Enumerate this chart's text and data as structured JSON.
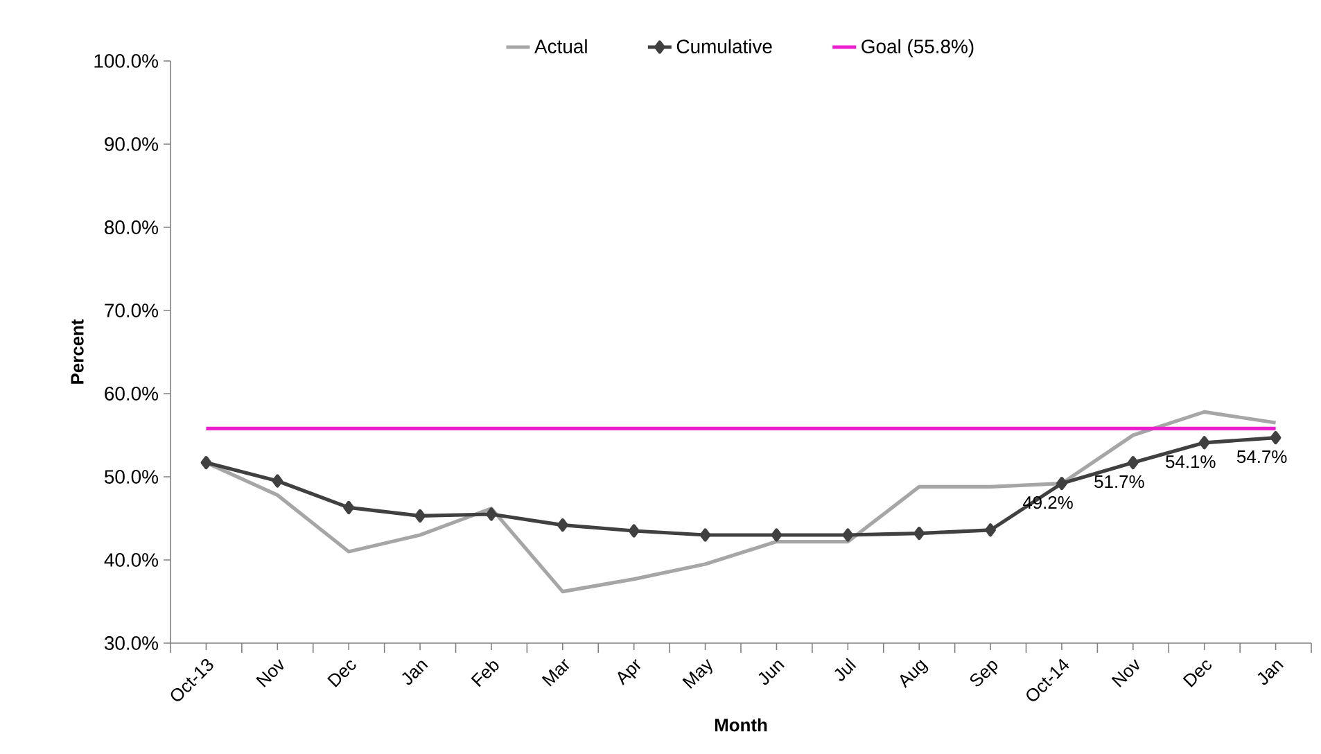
{
  "chart_data": {
    "type": "line",
    "xlabel": "Month",
    "ylabel": "Percent",
    "categories": [
      "Oct-13",
      "Nov",
      "Dec",
      "Jan",
      "Feb",
      "Mar",
      "Apr",
      "May",
      "Jun",
      "Jul",
      "Aug",
      "Sep",
      "Oct-14",
      "Nov",
      "Dec",
      "Jan"
    ],
    "series": [
      {
        "name": "Actual",
        "color": "#a6a6a6",
        "marker": "none",
        "values": [
          51.7,
          47.8,
          41.0,
          43.0,
          46.2,
          36.2,
          37.7,
          39.5,
          42.2,
          42.2,
          48.8,
          48.8,
          49.2,
          55.0,
          57.8,
          56.5
        ]
      },
      {
        "name": "Cumulative",
        "color": "#404040",
        "marker": "diamond",
        "values": [
          51.7,
          49.5,
          46.3,
          45.3,
          45.5,
          44.2,
          43.5,
          43.0,
          43.0,
          43.0,
          43.2,
          43.6,
          49.2,
          51.7,
          54.1,
          54.7
        ],
        "value_labels": [
          null,
          null,
          null,
          null,
          null,
          null,
          null,
          null,
          null,
          null,
          null,
          null,
          "49.2%",
          "51.7%",
          "54.1%",
          "54.7%"
        ]
      },
      {
        "name": "Goal (55.8%)",
        "color": "#ec1fcf",
        "marker": "none",
        "values": [
          55.8,
          55.8,
          55.8,
          55.8,
          55.8,
          55.8,
          55.8,
          55.8,
          55.8,
          55.8,
          55.8,
          55.8,
          55.8,
          55.8,
          55.8,
          55.8
        ]
      }
    ],
    "ylim": [
      30,
      100
    ],
    "yticks": [
      {
        "value": 30,
        "label": "30.0%"
      },
      {
        "value": 40,
        "label": "40.0%"
      },
      {
        "value": 50,
        "label": "50.0%"
      },
      {
        "value": 60,
        "label": "60.0%"
      },
      {
        "value": 70,
        "label": "70.0%"
      },
      {
        "value": 80,
        "label": "80.0%"
      },
      {
        "value": 90,
        "label": "90.0%"
      },
      {
        "value": 100,
        "label": "100.0%"
      }
    ],
    "grid": false,
    "legend": "top"
  }
}
